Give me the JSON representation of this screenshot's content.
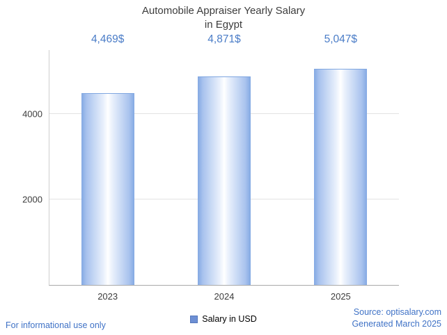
{
  "header": {
    "title_line1": "Automobile Appraiser Yearly Salary",
    "title_line2": "in Egypt"
  },
  "chart_data": {
    "type": "bar",
    "title": "Automobile Appraiser Yearly Salary in Egypt",
    "categories": [
      "2023",
      "2024",
      "2025"
    ],
    "values": [
      4469,
      4871,
      5047
    ],
    "value_labels": [
      "4,469$",
      "4,871$",
      "5,047$"
    ],
    "series": [
      {
        "name": "Salary in USD",
        "values": [
          4469,
          4871,
          5047
        ]
      }
    ],
    "xlabel": "",
    "ylabel": "",
    "ylim": [
      0,
      5500
    ],
    "yticks": [
      2000,
      4000
    ],
    "grid": true,
    "legend_position": "bottom",
    "bar_color_edge": "#84a9e3",
    "bar_color_center": "#ffffff",
    "value_label_color": "#4a7cc7"
  },
  "legend": {
    "label": "Salary in USD",
    "marker_color": "#6d8fd4"
  },
  "footer": {
    "disclaimer": "For informational use only",
    "source": "Source: optisalary.com",
    "generated": "Generated March 2025"
  }
}
